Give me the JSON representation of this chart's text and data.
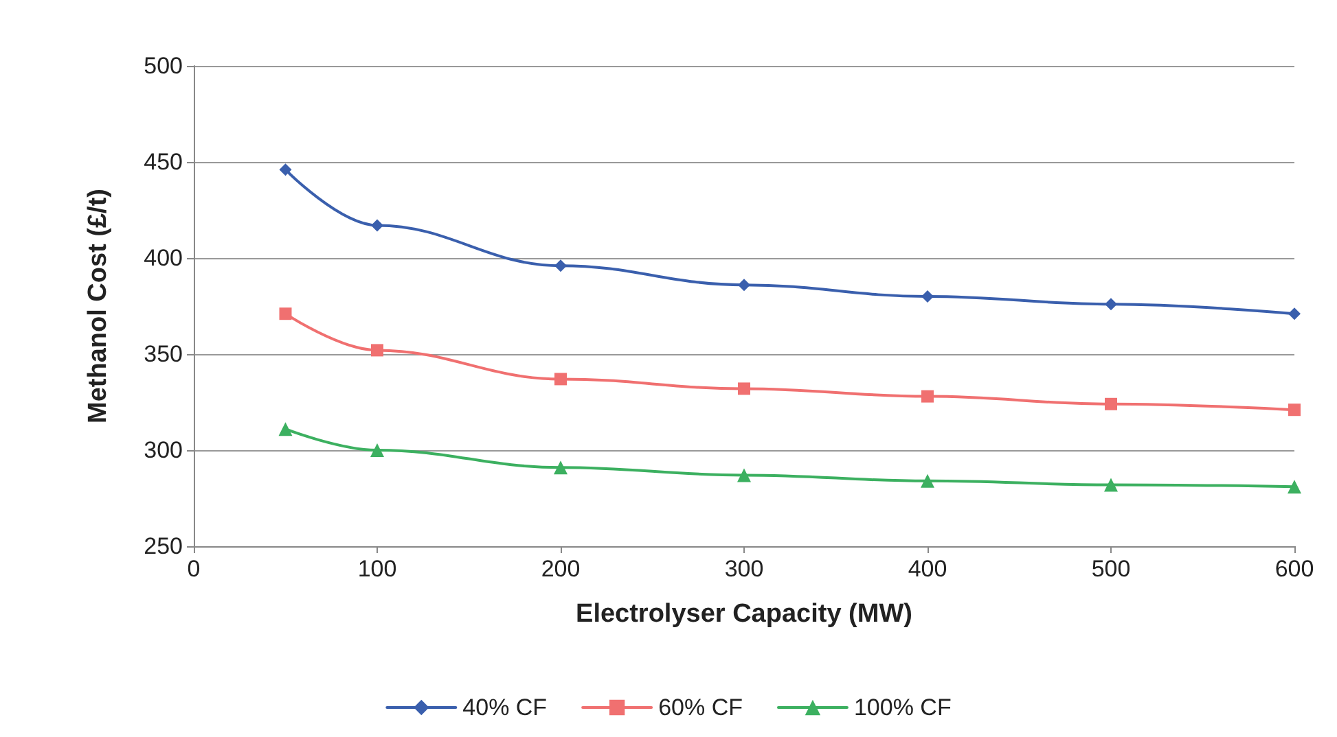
{
  "chart_data": {
    "type": "line",
    "xlabel": "Electrolyser Capacity (MW)",
    "ylabel": "Methanol Cost (£/t)",
    "x": [
      50,
      100,
      200,
      300,
      400,
      500,
      600
    ],
    "xlim": [
      0,
      600
    ],
    "xticks": [
      0,
      100,
      200,
      300,
      400,
      500,
      600
    ],
    "ylim": [
      250,
      500
    ],
    "yticks": [
      250,
      300,
      350,
      400,
      450,
      500
    ],
    "grid": "y",
    "legend": "bottom",
    "line_style": "solid",
    "series": [
      {
        "name": "40% CF",
        "color": "#3a5fad",
        "marker": "diamond",
        "values": [
          446,
          417,
          396,
          386,
          380,
          376,
          371
        ]
      },
      {
        "name": "60% CF",
        "color": "#f07070",
        "marker": "square",
        "values": [
          371,
          352,
          337,
          332,
          328,
          324,
          321
        ]
      },
      {
        "name": "100% CF",
        "color": "#3cb060",
        "marker": "triangle",
        "values": [
          311,
          300,
          291,
          287,
          284,
          282,
          281
        ]
      }
    ]
  }
}
